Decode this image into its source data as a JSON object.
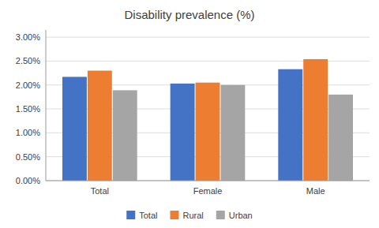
{
  "chart_data": {
    "type": "bar",
    "title": "Disability prevalence (%)",
    "categories": [
      "Total",
      "Female",
      "Male"
    ],
    "series": [
      {
        "name": "Total",
        "color": "#4472C4",
        "values": [
          0.0217,
          0.0203,
          0.0233
        ]
      },
      {
        "name": "Rural",
        "color": "#ED7D31",
        "values": [
          0.023,
          0.0205,
          0.0254
        ]
      },
      {
        "name": "Urban",
        "color": "#A5A5A5",
        "values": [
          0.0189,
          0.02,
          0.018
        ]
      }
    ],
    "ylim": [
      0,
      0.0315
    ],
    "yticks": [
      {
        "value": 0.0,
        "label": "0.00%"
      },
      {
        "value": 0.005,
        "label": "0.50%"
      },
      {
        "value": 0.01,
        "label": "1.00%"
      },
      {
        "value": 0.015,
        "label": "1.50%"
      },
      {
        "value": 0.02,
        "label": "2.00%"
      },
      {
        "value": 0.025,
        "label": "2.50%"
      },
      {
        "value": 0.03,
        "label": "3.00%"
      }
    ],
    "grid": true,
    "legend": "bottom"
  }
}
